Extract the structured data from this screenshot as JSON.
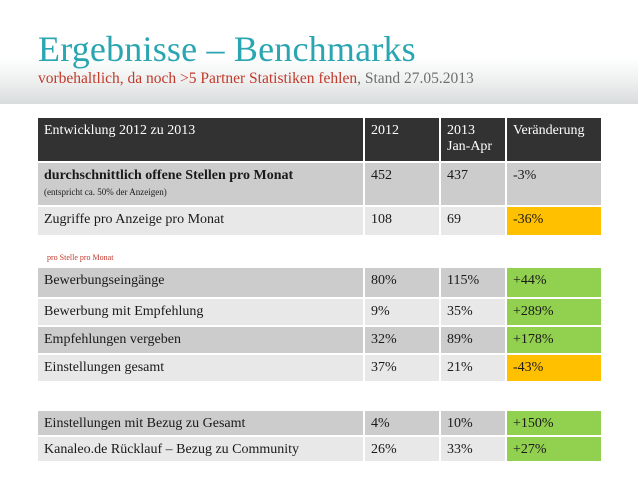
{
  "header": {
    "title": "Ergebnisse – Benchmarks",
    "subtitle_red": "vorbehaltlich, da noch >5 Partner Statistiken fehlen",
    "subtitle_gray": ", Stand 27.05.2013"
  },
  "table1": {
    "columns": [
      "Entwicklung 2012 zu 2013",
      "2012",
      "2013",
      "Jan-Apr",
      "Veränderung"
    ],
    "rows": [
      {
        "label": "durchschnittlich offene Stellen  pro Monat",
        "note": "(entspricht ca. 50% der Anzeigen)",
        "y2012": "452",
        "y2013": "437",
        "change": "-3%"
      },
      {
        "label": "Zugriffe pro Anzeige pro Monat",
        "y2012": "108",
        "y2013": "69",
        "change": "-36%"
      }
    ]
  },
  "section_label": "pro Stelle pro Monat",
  "table2": {
    "rows": [
      {
        "label": "Bewerbungseingänge",
        "y2012": "80%",
        "y2013": "115%",
        "change": "+44%"
      },
      {
        "label": "Bewerbung mit Empfehlung",
        "y2012": "9%",
        "y2013": "35%",
        "change": "+289%"
      },
      {
        "label": "Empfehlungen vergeben",
        "y2012": "32%",
        "y2013": "89%",
        "change": "+178%"
      },
      {
        "label": "Einstellungen gesamt",
        "y2012": "37%",
        "y2013": "21%",
        "change": "-43%"
      }
    ]
  },
  "table3": {
    "rows": [
      {
        "label": "Einstellungen mit Bezug zu Gesamt",
        "y2012": "4%",
        "y2013": "10%",
        "change": "+150%"
      },
      {
        "label": "Kanaleo.de Rücklauf – Bezug zu Community",
        "y2012": "26%",
        "y2013": "33%",
        "change": "+27%"
      }
    ]
  },
  "colors": {
    "title": "#2aa5b2",
    "subtitle_red": "#c0392b",
    "header_row": "#323232",
    "row_dark": "#cccccc",
    "row_light": "#e8e8e8",
    "positive": "#92d050",
    "negative": "#ffc000"
  }
}
